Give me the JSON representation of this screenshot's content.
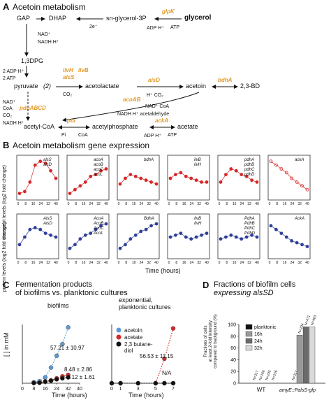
{
  "panelA": {
    "letter": "A",
    "title": "Acetoin metabolism",
    "nodes": {
      "gap": "GAP",
      "dhap": "DHAP",
      "g3p": "sn-glycerol-3P",
      "glycerol": "glycerol",
      "bpg": "1,3DPG",
      "pyr": "pyruvate",
      "pyr_n": "(2)",
      "acl": "acetolactate",
      "act": "acetoin",
      "bd": "2,3-BD",
      "acoa": "acetyl-CoA",
      "acp": "acetylphosphate",
      "ac": "acetate"
    },
    "cofactors": {
      "nad": "NAD⁺",
      "nadh": "NADH H⁺",
      "twoe": "2e⁻",
      "adph": "ADP H⁺",
      "atp": "ATP",
      "adp2": "2 ADP H⁺",
      "atp2": "2 ATP",
      "hco2": "H⁺  CO₂",
      "coa": "CoA",
      "co2": "CO₂",
      "nadcoa": "NAD⁺ CoA",
      "nadhald": "NADH H⁺ acetaldehyde",
      "pi": "Pi",
      "coa2": "CoA",
      "adp3": "ADP H⁺",
      "atp3": "ATP"
    },
    "enzymes": {
      "glpk": "glpK",
      "ilvh": "ilvH",
      "ilvb": "ilvB",
      "alss": "alsS",
      "alsd": "alsD",
      "bdha": "bdhA",
      "pdh": "pdhABCD",
      "acoab": "acoAB",
      "pta": "pta",
      "acka": "ackA"
    }
  },
  "panelB": {
    "letter": "B",
    "title": "Acetoin metabolism gene expression",
    "ylabel_top": [
      "transcript levels",
      "(log2 fold change)"
    ],
    "ylabel_bot": [
      "protein levels",
      "(log2 fold change)"
    ],
    "xlabel": "Time (hours)",
    "legend_top": [
      [
        "alsS",
        "alsD"
      ],
      [
        "acoA",
        "acoB",
        "acoC",
        "acoL"
      ],
      [
        "bdhA"
      ],
      [
        "ilvB",
        "ilvH"
      ],
      [
        "pdhA",
        "pdhB",
        "pdhC",
        "pdhD"
      ],
      [
        "ackA"
      ]
    ],
    "legend_bot": [
      [
        "AlsS",
        "AlsD"
      ],
      [
        "AcoA",
        "AcoB",
        "AcoC",
        "AcoL"
      ],
      [
        "BdhA"
      ],
      [
        "IlvB",
        "IlvH"
      ],
      [
        "PdhA",
        "PdhB",
        "PdhC",
        "PdhD"
      ],
      [
        "AckA"
      ]
    ]
  },
  "panelC": {
    "letter": "C",
    "title": [
      "Fermentation products",
      "of biofilms vs. planktonic cultures"
    ],
    "biofilm_label": "biofilms",
    "plank_label": [
      "exponential,",
      "planktonic cultures"
    ],
    "ylabel": "[    ] in mM",
    "xlabel": "Time (hours)",
    "annot": [
      "57.21 ± 10.97",
      "8.48 ± 2.86",
      "6.12 ± 1.61",
      "56.53 ± 11.15",
      "N/A"
    ],
    "legend": [
      "acetoin",
      "acetate",
      "2,3 butane-",
      "diol"
    ],
    "colors": {
      "acetoin": "#5b9bd5",
      "acetate": "#d62728",
      "butanediol": "#111111"
    }
  },
  "panelD": {
    "letter": "D",
    "title": [
      "Fractions of biofilm cells",
      "expressing alsSD"
    ],
    "ylabel": [
      "Fractions of cells",
      "at least 2-fold intensity",
      "compared to background (%)"
    ],
    "legend": [
      "planktonic",
      "16h",
      "24h",
      "32h"
    ],
    "groups": [
      "WT",
      "amyE::PalsS-gfp"
    ],
    "nlabels_wt": [
      "N=117",
      "N=166",
      "N=235",
      "N=156"
    ],
    "nlabels_mut": [
      "N=117",
      "N=234",
      "N=471",
      "N=463"
    ]
  },
  "chart_data": [
    {
      "type": "line",
      "title": "biofilms",
      "xlabel": "Time (hours)",
      "ylabel": "[ ] in mM",
      "x": [
        8,
        12,
        16,
        20,
        24,
        28,
        32
      ],
      "series": [
        {
          "name": "acetoin",
          "values": [
            1,
            2,
            6,
            16,
            28,
            40,
            57
          ]
        },
        {
          "name": "acetate",
          "values": [
            0.3,
            0.6,
            2,
            3,
            5,
            7,
            8.5
          ]
        },
        {
          "name": "2,3 butane-diol",
          "values": [
            0.2,
            0.4,
            1.5,
            2.5,
            4,
            5,
            6
          ]
        }
      ],
      "annotations": [
        "57.21 ± 10.97",
        "8.48 ± 2.86",
        "6.12 ± 1.61"
      ]
    },
    {
      "type": "line",
      "title": "exponential, planktonic cultures",
      "xlabel": "Time (hours)",
      "x": [
        0,
        1,
        3,
        5,
        6,
        7
      ],
      "series": [
        {
          "name": "acetoin",
          "values": [
            0,
            0,
            0,
            0,
            0,
            0
          ]
        },
        {
          "name": "acetate",
          "values": [
            0,
            0,
            0,
            0,
            25,
            56
          ]
        },
        {
          "name": "2,3 butane-diol",
          "values": [
            0,
            0,
            0,
            0,
            0,
            0
          ]
        }
      ],
      "annotations": [
        "56.53 ± 11.15",
        "N/A"
      ]
    },
    {
      "type": "bar",
      "title": "Fractions of biofilm cells expressing alsSD",
      "categories": [
        "WT",
        "amyE::PalsS-gfp"
      ],
      "series": [
        {
          "name": "planktonic",
          "values": [
            0,
            0
          ]
        },
        {
          "name": "16h",
          "values": [
            0,
            82
          ]
        },
        {
          "name": "24h",
          "values": [
            0,
            96
          ]
        },
        {
          "name": "32h",
          "values": [
            0,
            96
          ]
        }
      ],
      "ylim": [
        0,
        100
      ],
      "yticks": [
        0,
        20,
        40,
        60,
        80,
        100
      ]
    }
  ]
}
